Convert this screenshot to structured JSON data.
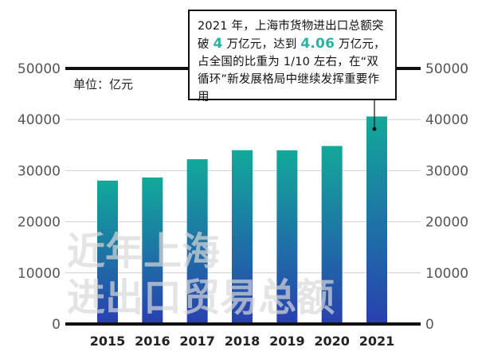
{
  "chart_data": {
    "type": "bar",
    "categories": [
      "2015",
      "2016",
      "2017",
      "2018",
      "2019",
      "2020",
      "2021"
    ],
    "values": [
      28060,
      28670,
      32240,
      34010,
      33990,
      34830,
      40600
    ],
    "unit_label": "单位：亿元",
    "ylim": [
      0,
      50000
    ],
    "yticks": [
      "0",
      "10000",
      "20000",
      "30000",
      "40000",
      "50000"
    ],
    "yaxis": "both-sides",
    "grid": true,
    "watermark_lines": [
      "近年上海",
      "进出口贸易总额"
    ],
    "annotation": {
      "text_1": "2021 年，上海市货物进出口总额突破 ",
      "highlight_1": "4",
      "text_2": " 万亿元，达到 ",
      "highlight_2": "4.06",
      "text_3": " 万亿元，占全国的比重为 1/10 左右，在“双循环”新发展格局中继续发挥重要作用",
      "points_to": "2021"
    },
    "colors": {
      "bar_top": "#12a99a",
      "bar_bottom": "#2940b0",
      "highlight": "#2bb3a0"
    }
  }
}
